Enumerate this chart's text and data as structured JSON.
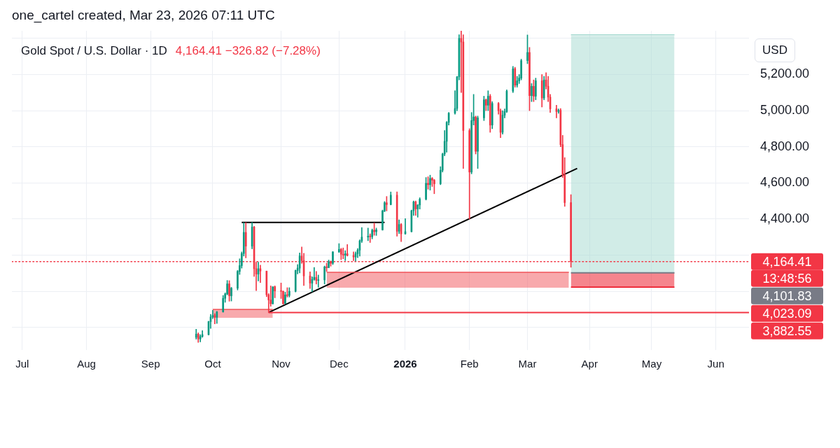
{
  "chart_data": {
    "type": "candlestick",
    "title": "Gold Spot / U.S. Dollar · 1D",
    "subtitle": "4,164.41 −326.82 (−7.28%)",
    "ylabel": "USD",
    "annotations": [
      "one_cartel created, Mar 23, 2026 07:11 UTC",
      "13:48:56",
      "4,101.83",
      "4,023.09",
      "3,882.55"
    ],
    "x": [
      "2025-09-23",
      "2025-09-24",
      "2025-09-25",
      "2025-09-26",
      "2025-09-29",
      "2025-09-30",
      "2025-10-01",
      "2025-10-02",
      "2025-10-03",
      "2025-10-06",
      "2025-10-07",
      "2025-10-08",
      "2025-10-09",
      "2025-10-10",
      "2025-10-13",
      "2025-10-14",
      "2025-10-15",
      "2025-10-16",
      "2025-10-17",
      "2025-10-20",
      "2025-10-21",
      "2025-10-22",
      "2025-10-23",
      "2025-10-24",
      "2025-10-27",
      "2025-10-28",
      "2025-10-29",
      "2025-10-30",
      "2025-10-31",
      "2025-11-03",
      "2025-11-04",
      "2025-11-05",
      "2025-11-06",
      "2025-11-07",
      "2025-11-10",
      "2025-11-11",
      "2025-11-12",
      "2025-11-13",
      "2025-11-14",
      "2025-11-17",
      "2025-11-18",
      "2025-11-19",
      "2025-11-20",
      "2025-11-21",
      "2025-11-24",
      "2025-11-25",
      "2025-11-26",
      "2025-11-27",
      "2025-11-28",
      "2025-12-01",
      "2025-12-02",
      "2025-12-03",
      "2025-12-04",
      "2025-12-05",
      "2025-12-08",
      "2025-12-09",
      "2025-12-10",
      "2025-12-11",
      "2025-12-12",
      "2025-12-15",
      "2025-12-16",
      "2025-12-17",
      "2025-12-18",
      "2025-12-19",
      "2025-12-22",
      "2025-12-23",
      "2025-12-24",
      "2025-12-26",
      "2025-12-29",
      "2025-12-30",
      "2025-12-31",
      "2026-01-02",
      "2026-01-05",
      "2026-01-06",
      "2026-01-07",
      "2026-01-08",
      "2026-01-09",
      "2026-01-12",
      "2026-01-13",
      "2026-01-14",
      "2026-01-15",
      "2026-01-16",
      "2026-01-19",
      "2026-01-20",
      "2026-01-21",
      "2026-01-22",
      "2026-01-23",
      "2026-01-26",
      "2026-01-27",
      "2026-01-28",
      "2026-01-29",
      "2026-01-30",
      "2026-02-02",
      "2026-02-03",
      "2026-02-04",
      "2026-02-05",
      "2026-02-06",
      "2026-02-09",
      "2026-02-10",
      "2026-02-11",
      "2026-02-12",
      "2026-02-13",
      "2026-02-16",
      "2026-02-17",
      "2026-02-18",
      "2026-02-19",
      "2026-02-20",
      "2026-02-23",
      "2026-02-24",
      "2026-02-25",
      "2026-02-26",
      "2026-02-27",
      "2026-03-02",
      "2026-03-03",
      "2026-03-04",
      "2026-03-05",
      "2026-03-06",
      "2026-03-09",
      "2026-03-10",
      "2026-03-11",
      "2026-03-12",
      "2026-03-13",
      "2026-03-16",
      "2026-03-17",
      "2026-03-18",
      "2026-03-19",
      "2026-03-20",
      "2026-03-23"
    ],
    "ohlc": [
      [
        3745,
        3790,
        3735,
        3763
      ],
      [
        3763,
        3770,
        3717,
        3736
      ],
      [
        3736,
        3760,
        3720,
        3750
      ],
      [
        3750,
        3782,
        3745,
        3760
      ],
      [
        3760,
        3835,
        3758,
        3832
      ],
      [
        3832,
        3872,
        3794,
        3858
      ],
      [
        3858,
        3895,
        3849,
        3866
      ],
      [
        3866,
        3876,
        3820,
        3856
      ],
      [
        3856,
        3889,
        3822,
        3886
      ],
      [
        3886,
        3977,
        3884,
        3961
      ],
      [
        3961,
        3991,
        3939,
        3985
      ],
      [
        3985,
        4060,
        3980,
        4041
      ],
      [
        4041,
        4059,
        3945,
        3975
      ],
      [
        3975,
        4022,
        3946,
        4017
      ],
      [
        4017,
        4116,
        4007,
        4110
      ],
      [
        4110,
        4180,
        4093,
        4142
      ],
      [
        4142,
        4218,
        4128,
        4209
      ],
      [
        4209,
        4380,
        4195,
        4326
      ],
      [
        4326,
        4380,
        4185,
        4250
      ],
      [
        4250,
        4381,
        4235,
        4356
      ],
      [
        4356,
        4360,
        4082,
        4125
      ],
      [
        4125,
        4161,
        4004,
        4095
      ],
      [
        4095,
        4161,
        4057,
        4125
      ],
      [
        4125,
        4145,
        4048,
        4112
      ],
      [
        4112,
        4112,
        3970,
        3981
      ],
      [
        3981,
        3987,
        3883,
        3952
      ],
      [
        3952,
        4030,
        3917,
        3931
      ],
      [
        3931,
        4025,
        3929,
        4025
      ],
      [
        4025,
        4030,
        3964,
        4002
      ],
      [
        4002,
        4046,
        3960,
        4000
      ],
      [
        4000,
        4002,
        3928,
        3932
      ],
      [
        3932,
        3995,
        3931,
        3980
      ],
      [
        3980,
        4020,
        3968,
        3977
      ],
      [
        3977,
        4020,
        3968,
        4000
      ],
      [
        4000,
        4118,
        3996,
        4115
      ],
      [
        4115,
        4148,
        4096,
        4128
      ],
      [
        4128,
        4212,
        4102,
        4195
      ],
      [
        4195,
        4245,
        4155,
        4170
      ],
      [
        4170,
        4210,
        4032,
        4085
      ],
      [
        4085,
        4108,
        4015,
        4045
      ],
      [
        4045,
        4081,
        3997,
        4066
      ],
      [
        4066,
        4132,
        4061,
        4077
      ],
      [
        4077,
        4110,
        4040,
        4060
      ],
      [
        4060,
        4090,
        4022,
        4063
      ],
      [
        4063,
        4140,
        4040,
        4135
      ],
      [
        4135,
        4156,
        4110,
        4131
      ],
      [
        4131,
        4173,
        4130,
        4164
      ],
      [
        4164,
        4168,
        4139,
        4155
      ],
      [
        4155,
        4220,
        4148,
        4218
      ],
      [
        4218,
        4264,
        4215,
        4232
      ],
      [
        4232,
        4238,
        4175,
        4205
      ],
      [
        4205,
        4240,
        4180,
        4200
      ],
      [
        4200,
        4225,
        4170,
        4208
      ],
      [
        4208,
        4259,
        4195,
        4198
      ],
      [
        4198,
        4218,
        4169,
        4190
      ],
      [
        4190,
        4218,
        4167,
        4208
      ],
      [
        4208,
        4237,
        4186,
        4228
      ],
      [
        4228,
        4285,
        4195,
        4279
      ],
      [
        4279,
        4353,
        4270,
        4300
      ],
      [
        4300,
        4350,
        4280,
        4305
      ],
      [
        4305,
        4318,
        4270,
        4302
      ],
      [
        4302,
        4345,
        4290,
        4338
      ],
      [
        4338,
        4378,
        4310,
        4330
      ],
      [
        4330,
        4350,
        4309,
        4340
      ],
      [
        4340,
        4450,
        4338,
        4445
      ],
      [
        4445,
        4497,
        4440,
        4490
      ],
      [
        4490,
        4525,
        4445,
        4480
      ],
      [
        4480,
        4550,
        4478,
        4532
      ],
      [
        4532,
        4550,
        4305,
        4332
      ],
      [
        4332,
        4395,
        4320,
        4370
      ],
      [
        4370,
        4375,
        4275,
        4318
      ],
      [
        4318,
        4402,
        4316,
        4330
      ],
      [
        4330,
        4450,
        4328,
        4446
      ],
      [
        4446,
        4500,
        4420,
        4495
      ],
      [
        4495,
        4500,
        4420,
        4456
      ],
      [
        4456,
        4480,
        4410,
        4478
      ],
      [
        4478,
        4518,
        4455,
        4510
      ],
      [
        4510,
        4630,
        4505,
        4598
      ],
      [
        4598,
        4634,
        4565,
        4590
      ],
      [
        4590,
        4643,
        4560,
        4625
      ],
      [
        4625,
        4630,
        4580,
        4615
      ],
      [
        4615,
        4620,
        4540,
        4595
      ],
      [
        4595,
        4690,
        4590,
        4670
      ],
      [
        4670,
        4765,
        4660,
        4760
      ],
      [
        4760,
        4890,
        4750,
        4830
      ],
      [
        4830,
        4940,
        4770,
        4935
      ],
      [
        4935,
        4990,
        4920,
        4986
      ],
      [
        4986,
        5110,
        4980,
        5012
      ],
      [
        5012,
        5190,
        5000,
        5187
      ],
      [
        5187,
        5420,
        5170,
        5400
      ],
      [
        5400,
        5442,
        5100,
        5380
      ],
      [
        5380,
        5420,
        4680,
        4890
      ],
      [
        4890,
        4900,
        4400,
        4660
      ],
      [
        4660,
        4990,
        4650,
        4945
      ],
      [
        4945,
        5090,
        4920,
        4965
      ],
      [
        4965,
        4970,
        4760,
        4775
      ],
      [
        4775,
        4970,
        4680,
        4960
      ],
      [
        4960,
        5080,
        4945,
        5060
      ],
      [
        5060,
        5065,
        5000,
        5030
      ],
      [
        5030,
        5110,
        5000,
        5080
      ],
      [
        5080,
        5090,
        4880,
        4920
      ],
      [
        4920,
        5050,
        4900,
        5040
      ],
      [
        5040,
        5045,
        4980,
        5000
      ],
      [
        5000,
        5010,
        4850,
        4880
      ],
      [
        4880,
        5000,
        4870,
        4975
      ],
      [
        4975,
        5010,
        4960,
        4995
      ],
      [
        4995,
        5115,
        4990,
        5108
      ],
      [
        5108,
        5245,
        5100,
        5232
      ],
      [
        5232,
        5240,
        5130,
        5141
      ],
      [
        5141,
        5190,
        5130,
        5165
      ],
      [
        5165,
        5200,
        5150,
        5180
      ],
      [
        5180,
        5285,
        5170,
        5277
      ],
      [
        5277,
        5419,
        5260,
        5322
      ],
      [
        5322,
        5350,
        5000,
        5083
      ],
      [
        5083,
        5150,
        5050,
        5135
      ],
      [
        5135,
        5170,
        5050,
        5080
      ],
      [
        5080,
        5180,
        5060,
        5165
      ],
      [
        5165,
        5200,
        5020,
        5070
      ],
      [
        5070,
        5190,
        5060,
        5170
      ],
      [
        5170,
        5210,
        5120,
        5135
      ],
      [
        5135,
        5190,
        5050,
        5075
      ],
      [
        5075,
        5090,
        4990,
        5010
      ],
      [
        5010,
        5030,
        4960,
        4995
      ],
      [
        4995,
        5010,
        4985,
        5002
      ],
      [
        5002,
        5012,
        4800,
        4812
      ],
      [
        4812,
        4863,
        4630,
        4644
      ],
      [
        4644,
        4740,
        4470,
        4491
      ],
      [
        4491,
        4535,
        4133,
        4164.41
      ]
    ],
    "series": [
      {
        "type": "line",
        "x": [
          "2025-10-01",
          "2025-10-30"
        ],
        "values": [
          3900,
          3900
        ],
        "lower": [
          3853,
          3853
        ],
        "upper": [
          3900,
          3900
        ],
        "color": "#f15359"
      },
      {
        "type": "line",
        "x": [
          "2025-11-25",
          "2026-03-22"
        ],
        "values": [
          4105,
          4105
        ],
        "lower": [
          4020,
          4020
        ],
        "upper": [
          4105,
          4105
        ],
        "color": "#f15359"
      },
      {
        "type": "line",
        "x": [
          "2026-03-23",
          "2026-05-12"
        ],
        "values": [
          5420,
          5420
        ],
        "lower": [
          4101.83,
          4101.83
        ],
        "upper": [
          5414,
          5414
        ],
        "color": "#a3d9cf"
      },
      {
        "type": "line",
        "x": [
          "2026-03-23",
          "2026-05-12"
        ],
        "values": [
          4023.09,
          4023.09
        ],
        "lower": [
          4023.09,
          4023.09
        ],
        "upper": [
          4101.83,
          4101.83
        ],
        "color": "#eb0b1b"
      },
      {
        "type": "line",
        "x": [
          "2026-03-23",
          "2026-05-12"
        ],
        "values": [
          4101.83,
          4101.83
        ],
        "color": "#787b86"
      },
      {
        "type": "line",
        "x": [
          "2025-10-28",
          "2026-06-17"
        ],
        "values": [
          3882.55,
          3882.55
        ],
        "color": "#f23645"
      },
      {
        "type": "line",
        "x": [
          "2025-10-15",
          "2025-12-23"
        ],
        "values": [
          4381,
          4381
        ],
        "color": "#000000"
      },
      {
        "type": "line",
        "x": [
          "2025-10-28",
          "2026-03-26"
        ],
        "values": [
          3883,
          4680
        ],
        "color": "#000000"
      }
    ],
    "ref_lines": [
      {
        "axis": "y",
        "value": 4164.41,
        "label": "4,164.41",
        "color": "#f23645",
        "line_style": "dotted"
      }
    ],
    "xlim": [
      "2025-06-26",
      "2026-06-17"
    ],
    "xticks": [
      {
        "value": "2025-07-01",
        "label": "Jul"
      },
      {
        "value": "2025-08-01",
        "label": "Aug"
      },
      {
        "value": "2025-09-01",
        "label": "Sep"
      },
      {
        "value": "2025-10-01",
        "label": "Oct"
      },
      {
        "value": "2025-11-03",
        "label": "Nov"
      },
      {
        "value": "2025-12-01",
        "label": "Dec"
      },
      {
        "value": "2026-01-02",
        "label": "2026"
      },
      {
        "value": "2026-02-02",
        "label": "Feb"
      },
      {
        "value": "2026-03-02",
        "label": "Mar"
      },
      {
        "value": "2026-04-01",
        "label": "Apr"
      },
      {
        "value": "2026-05-01",
        "label": "May"
      },
      {
        "value": "2026-06-01",
        "label": "Jun"
      }
    ],
    "ylim": [
      3675,
      5442
    ],
    "yticks": [
      {
        "value": 3800,
        "label": null
      },
      {
        "value": 4000,
        "label": null
      },
      {
        "value": 4200,
        "label": null
      },
      {
        "value": 4400,
        "label": "4,400.00"
      },
      {
        "value": 4600,
        "label": "4,600.00"
      },
      {
        "value": 4800,
        "label": "4,800.00"
      },
      {
        "value": 5000,
        "label": "5,000.00"
      },
      {
        "value": 5200,
        "label": "5,200.00"
      },
      {
        "value": 5400,
        "label": null
      }
    ],
    "grid": true
  }
}
